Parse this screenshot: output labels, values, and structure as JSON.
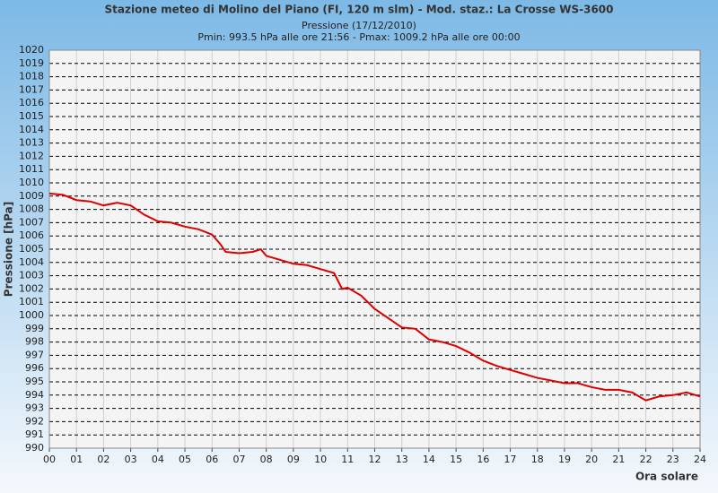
{
  "chart_data": {
    "type": "line",
    "title": "Stazione meteo di Molino del Piano (FI, 120 m slm) - Mod. staz.: La Crosse WS-3600",
    "subtitle": "Pressione (17/12/2010)",
    "annotation": "Pmin: 993.5 hPa alle ore 21:56 - Pmax: 1009.2 hPa alle ore 00:00",
    "y_label": "Pressione [hPa]",
    "x_label": "Ora solare",
    "x": [
      0,
      0.5,
      1,
      1.5,
      2,
      2.5,
      3,
      3.5,
      4,
      4.5,
      5,
      5.5,
      6,
      6.3,
      6.5,
      7,
      7.5,
      7.8,
      8,
      8.5,
      9,
      9.5,
      10,
      10.5,
      10.8,
      11,
      11.5,
      12,
      12.5,
      13,
      13.5,
      14,
      14.5,
      15,
      15.5,
      16,
      16.5,
      17,
      17.5,
      18,
      18.5,
      19,
      19.5,
      20,
      20.5,
      21,
      21.5,
      22,
      22.5,
      23,
      23.5,
      24
    ],
    "series": [
      {
        "color": "#dd0000",
        "values": [
          1009.2,
          1009.1,
          1008.7,
          1008.6,
          1008.3,
          1008.5,
          1008.3,
          1007.6,
          1007.1,
          1007.0,
          1006.7,
          1006.5,
          1006.1,
          1005.4,
          1004.8,
          1004.7,
          1004.8,
          1005.0,
          1004.5,
          1004.2,
          1003.9,
          1003.8,
          1003.5,
          1003.2,
          1002.0,
          1002.1,
          1001.5,
          1000.5,
          999.8,
          999.1,
          999.0,
          998.2,
          998.0,
          997.7,
          997.2,
          996.6,
          996.2,
          995.9,
          995.6,
          995.3,
          995.1,
          994.9,
          994.9,
          994.6,
          994.4,
          994.4,
          994.2,
          993.6,
          993.9,
          994.0,
          994.2,
          993.9
        ]
      }
    ],
    "xlim": [
      0,
      24
    ],
    "xticks": [
      {
        "value": 0,
        "label": "00"
      },
      {
        "value": 1,
        "label": "01"
      },
      {
        "value": 2,
        "label": "02"
      },
      {
        "value": 3,
        "label": "03"
      },
      {
        "value": 4,
        "label": "04"
      },
      {
        "value": 5,
        "label": "05"
      },
      {
        "value": 6,
        "label": "06"
      },
      {
        "value": 7,
        "label": "07"
      },
      {
        "value": 8,
        "label": "08"
      },
      {
        "value": 9,
        "label": "09"
      },
      10,
      11,
      12,
      13,
      14,
      15,
      16,
      17,
      18,
      19,
      20,
      21,
      22,
      23,
      24
    ],
    "ylim": [
      990,
      1020
    ],
    "yticks": [
      990,
      991,
      992,
      993,
      994,
      995,
      996,
      997,
      998,
      999,
      1000,
      1001,
      1002,
      1003,
      1004,
      1005,
      1006,
      1007,
      1008,
      1009,
      1010,
      1011,
      1012,
      1013,
      1014,
      1015,
      1016,
      1017,
      1018,
      1019,
      1020
    ],
    "grid": true
  }
}
